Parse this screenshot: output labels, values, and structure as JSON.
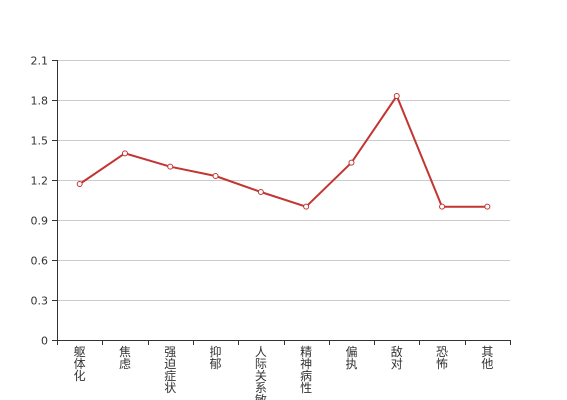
{
  "chart_data": {
    "type": "line",
    "categories": [
      "躯体化",
      "焦虑",
      "强迫症状",
      "抑郁",
      "人际关系敏感",
      "精神病性",
      "偏执",
      "敌对",
      "恐怖",
      "其他"
    ],
    "series": [
      {
        "values": [
          1.17,
          1.4,
          1.3,
          1.23,
          1.11,
          1.0,
          1.33,
          1.83,
          1.0,
          1.0
        ]
      }
    ],
    "ylim": [
      0,
      2.1
    ],
    "yticks": [
      "0",
      "0.3",
      "0.6",
      "0.9",
      "1.2",
      "1.5",
      "1.8",
      "2.1"
    ],
    "grid": true,
    "line_color": "#c23531",
    "marker_fill": "#ffffff",
    "title": "",
    "xlabel": "",
    "ylabel": ""
  }
}
